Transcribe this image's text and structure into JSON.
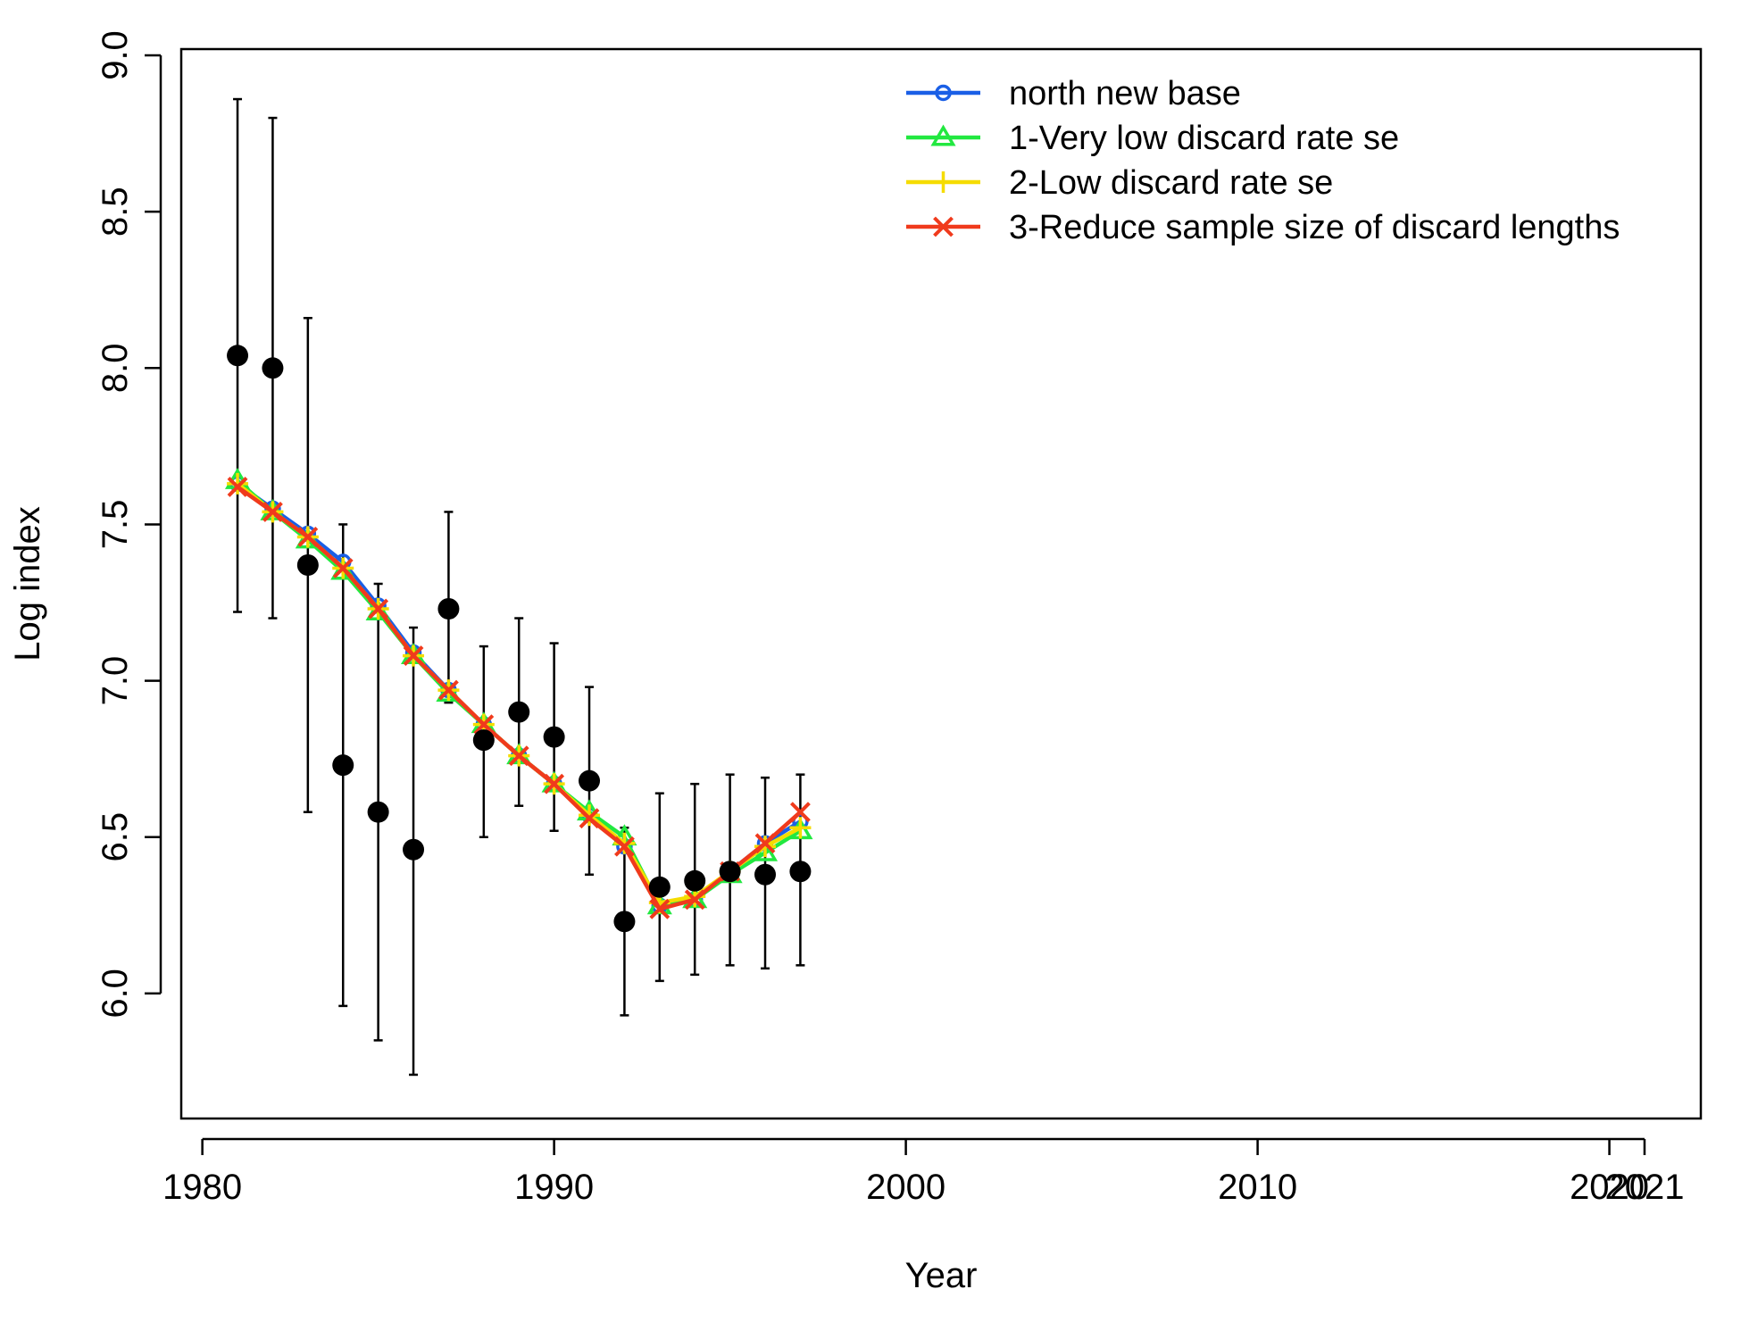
{
  "chart_data": {
    "type": "line",
    "title": "",
    "xlabel": "Year",
    "ylabel": "Log index",
    "xlim": [
      1979.4,
      2022.6
    ],
    "ylim": [
      5.6,
      9.02
    ],
    "x_ticks": [
      1980,
      1990,
      2000,
      2010,
      2020,
      2021
    ],
    "x_tick_labels": [
      "1980",
      "1990",
      "2000",
      "2010",
      "2020",
      "2021"
    ],
    "y_ticks": [
      6.0,
      6.5,
      7.0,
      7.5,
      8.0,
      8.5,
      9.0
    ],
    "y_tick_labels": [
      "6.0",
      "6.5",
      "7.0",
      "7.5",
      "8.0",
      "8.5",
      "9.0"
    ],
    "legend_position": "top-right",
    "grid": false,
    "observed": {
      "x": [
        1981,
        1982,
        1983,
        1984,
        1985,
        1986,
        1987,
        1988,
        1989,
        1990,
        1991,
        1992,
        1993,
        1994,
        1995,
        1996,
        1997
      ],
      "y": [
        8.04,
        8.0,
        7.37,
        6.73,
        6.58,
        6.46,
        7.23,
        6.81,
        6.9,
        6.82,
        6.68,
        6.23,
        6.34,
        6.36,
        6.39,
        6.38,
        6.39
      ],
      "lower": [
        7.22,
        7.2,
        6.58,
        5.96,
        5.85,
        5.74,
        6.93,
        6.5,
        6.6,
        6.52,
        6.38,
        5.93,
        6.04,
        6.06,
        6.09,
        6.08,
        6.09
      ],
      "upper": [
        8.86,
        8.8,
        8.16,
        7.5,
        7.31,
        7.17,
        7.54,
        7.11,
        7.2,
        7.12,
        6.98,
        6.53,
        6.64,
        6.67,
        6.7,
        6.69,
        6.7
      ]
    },
    "x": [
      1981,
      1982,
      1983,
      1984,
      1985,
      1986,
      1987,
      1988,
      1989,
      1990,
      1991,
      1992,
      1993,
      1994,
      1995,
      1996,
      1997
    ],
    "series": [
      {
        "name": "north new base",
        "color": "#1a5fe6",
        "marker": "circle",
        "values": [
          7.63,
          7.55,
          7.47,
          7.38,
          7.24,
          7.09,
          6.97,
          6.86,
          6.76,
          6.67,
          6.57,
          6.47,
          6.28,
          6.3,
          6.39,
          6.48,
          6.55
        ]
      },
      {
        "name": "1-Very low discard rate se",
        "color": "#22e840",
        "marker": "triangle",
        "values": [
          7.64,
          7.54,
          7.45,
          7.35,
          7.22,
          7.08,
          6.96,
          6.86,
          6.76,
          6.67,
          6.58,
          6.5,
          6.28,
          6.3,
          6.38,
          6.45,
          6.52
        ]
      },
      {
        "name": "2-Low discard rate se",
        "color": "#f5dc00",
        "marker": "plus",
        "values": [
          7.63,
          7.54,
          7.46,
          7.36,
          7.23,
          7.08,
          6.97,
          6.86,
          6.76,
          6.67,
          6.57,
          6.48,
          6.29,
          6.31,
          6.39,
          6.47,
          6.53
        ]
      },
      {
        "name": "3-Reduce sample size of discard lengths",
        "color": "#f03a1c",
        "marker": "cross",
        "values": [
          7.62,
          7.54,
          7.46,
          7.36,
          7.23,
          7.08,
          6.97,
          6.86,
          6.76,
          6.67,
          6.56,
          6.47,
          6.27,
          6.3,
          6.39,
          6.48,
          6.58
        ]
      }
    ]
  }
}
